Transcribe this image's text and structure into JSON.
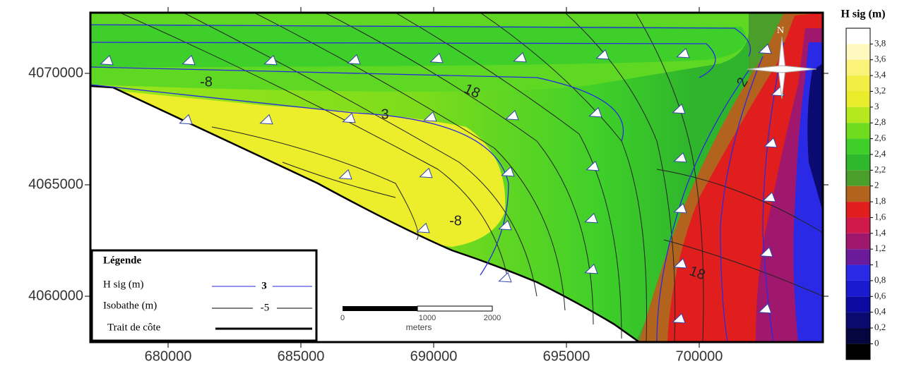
{
  "map": {
    "x_axis": {
      "ticks": [
        680000,
        685000,
        690000,
        695000,
        700000
      ]
    },
    "y_axis": {
      "ticks": [
        4070000,
        4065000,
        4060000
      ]
    },
    "colorbar": {
      "title": "H sig  (m)",
      "labels": [
        "3,8",
        "3,6",
        "3,4",
        "3,2",
        "3",
        "2,8",
        "2,6",
        "2,4",
        "2,2",
        "2",
        "1,8",
        "1,6",
        "1,4",
        "1,2",
        "1",
        "0,8",
        "0,6",
        "0,4",
        "0,2",
        "0"
      ]
    },
    "contour_labels": [
      "-8",
      "18",
      "3",
      "-8",
      "18",
      "2"
    ],
    "legend": {
      "title": "Légende",
      "items": [
        {
          "label": "H sig  (m)",
          "sample": "3"
        },
        {
          "label": "Isobathe (m)",
          "sample": "-5"
        },
        {
          "label": "Trait de côte"
        }
      ]
    },
    "scale_bar": {
      "labels": [
        "0",
        "1000",
        "2000"
      ],
      "unit": "meters"
    },
    "north": "N"
  }
}
